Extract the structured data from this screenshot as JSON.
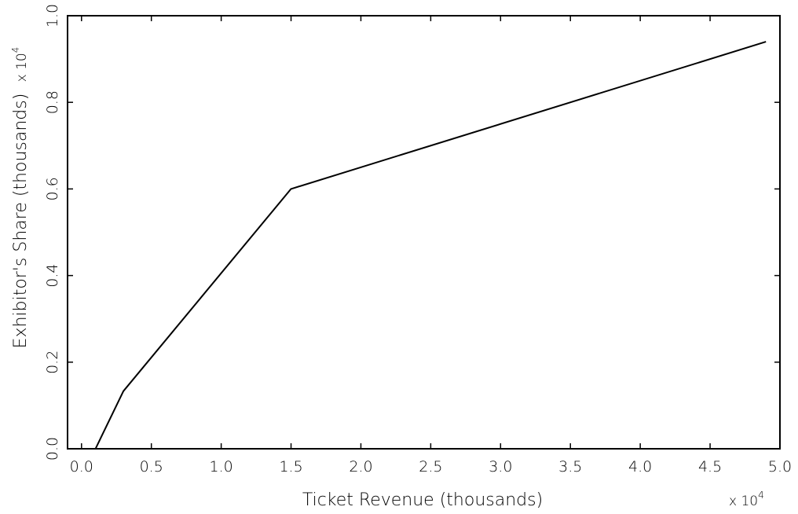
{
  "chart_data": {
    "type": "line",
    "title": "",
    "xlabel": "Ticket Revenue (thousands)",
    "ylabel": "Exhibitor's Share (thousands)",
    "x_multiplier": {
      "base": "x 10",
      "exponent": "4"
    },
    "y_multiplier": {
      "base": "x 10",
      "exponent": "4"
    },
    "xlim": [
      -0.1,
      5.0
    ],
    "ylim": [
      0.0,
      1.0
    ],
    "x_ticks": [
      0.0,
      0.5,
      1.0,
      1.5,
      2.0,
      2.5,
      3.0,
      3.5,
      4.0,
      4.5,
      5.0
    ],
    "x_tick_labels": [
      "0.0",
      "0.5",
      "1.0",
      "1.5",
      "2.0",
      "2.5",
      "3.0",
      "3.5",
      "4.0",
      "4.5",
      "5.0"
    ],
    "y_ticks": [
      0.0,
      0.2,
      0.4,
      0.6,
      0.8,
      1.0
    ],
    "y_tick_labels": [
      "0.0",
      "0.2",
      "0.4",
      "0.6",
      "0.8",
      "1.0"
    ],
    "grid": false,
    "legend": "none",
    "series": [
      {
        "color": "#000000",
        "x": [
          -0.1,
          0.1,
          0.3,
          1.5,
          4.9
        ],
        "y": [
          0.0,
          0.0,
          0.133,
          0.6,
          0.94
        ]
      }
    ]
  }
}
